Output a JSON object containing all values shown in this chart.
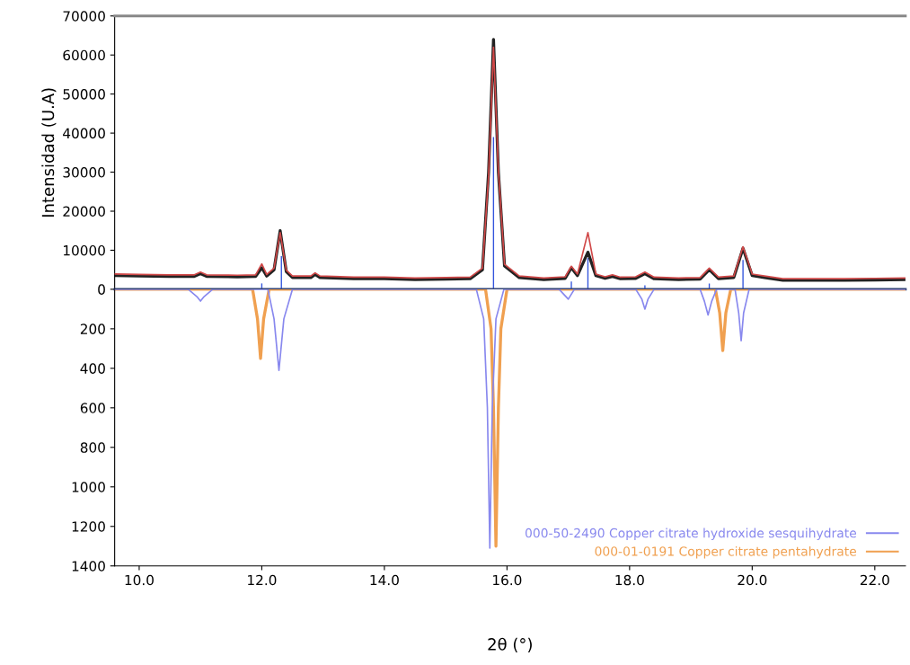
{
  "chart_data": [
    {
      "type": "line",
      "ylabel": "Intensidad (U.A)",
      "xlim": [
        9.6,
        22.5
      ],
      "ylim": [
        0,
        70000
      ],
      "yticks": [
        0,
        10000,
        20000,
        30000,
        40000,
        50000,
        60000,
        70000
      ],
      "tick_labels": "y",
      "grid": false,
      "legend": false,
      "series": [
        {
          "color": "#d04848",
          "x": [
            9.6,
            10.0,
            10.5,
            10.9,
            11.0,
            11.1,
            11.6,
            11.9,
            12.0,
            12.08,
            12.2,
            12.3,
            12.4,
            12.5,
            12.8,
            12.87,
            12.95,
            13.5,
            14.0,
            14.5,
            15.0,
            15.4,
            15.6,
            15.7,
            15.78,
            15.86,
            15.96,
            16.2,
            16.6,
            16.95,
            17.05,
            17.15,
            17.32,
            17.45,
            17.6,
            17.72,
            17.85,
            18.1,
            18.25,
            18.4,
            18.8,
            19.15,
            19.3,
            19.45,
            19.7,
            19.85,
            20.0,
            20.2,
            20.5,
            21.0,
            21.5,
            22.0,
            22.5
          ],
          "values": [
            3900,
            3800,
            3700,
            3700,
            4400,
            3700,
            3600,
            3700,
            6500,
            3800,
            5400,
            14500,
            4900,
            3400,
            3400,
            4200,
            3400,
            3100,
            3100,
            2900,
            3000,
            3100,
            5400,
            29000,
            62000,
            30400,
            6400,
            3400,
            2900,
            3200,
            5900,
            3900,
            14500,
            3900,
            3200,
            3700,
            3100,
            3200,
            4400,
            3100,
            2900,
            3000,
            5400,
            3100,
            3400,
            10900,
            3900,
            3400,
            2700,
            2700,
            2700,
            2800,
            2900
          ]
        },
        {
          "color": "#222222",
          "x": [
            9.6,
            10.0,
            10.5,
            10.9,
            11.0,
            11.1,
            11.6,
            11.9,
            12.0,
            12.08,
            12.2,
            12.3,
            12.4,
            12.5,
            12.8,
            12.87,
            12.95,
            13.5,
            14.0,
            14.5,
            15.0,
            15.4,
            15.6,
            15.7,
            15.78,
            15.86,
            15.96,
            16.2,
            16.6,
            16.95,
            17.05,
            17.15,
            17.32,
            17.45,
            17.6,
            17.72,
            17.85,
            18.1,
            18.25,
            18.4,
            18.8,
            19.15,
            19.3,
            19.45,
            19.7,
            19.85,
            20.0,
            20.2,
            20.5,
            21.0,
            21.5,
            22.0,
            22.5
          ],
          "values": [
            3500,
            3400,
            3300,
            3300,
            4000,
            3300,
            3200,
            3300,
            5500,
            3400,
            5000,
            15000,
            4500,
            3000,
            3000,
            3800,
            3000,
            2700,
            2700,
            2500,
            2600,
            2700,
            5000,
            30000,
            64000,
            30000,
            6000,
            3000,
            2500,
            2800,
            5500,
            3500,
            9500,
            3500,
            2800,
            3300,
            2700,
            2800,
            4000,
            2700,
            2500,
            2600,
            5000,
            2700,
            3000,
            10500,
            3500,
            3000,
            2300,
            2300,
            2300,
            2400,
            2500
          ]
        },
        {
          "type": "bar",
          "color": "#3355dd",
          "x": [
            12.0,
            12.32,
            15.78,
            17.05,
            17.32,
            18.25,
            19.3,
            19.85
          ],
          "values": [
            1500,
            8500,
            39000,
            2000,
            8000,
            1000,
            1500,
            7500
          ]
        }
      ]
    },
    {
      "type": "line",
      "xlabel": "2θ (°)",
      "xlim": [
        9.6,
        22.5
      ],
      "ylim": [
        1400,
        0
      ],
      "xticks": [
        {
          "value": 10,
          "label": "10.0"
        },
        {
          "value": 12,
          "label": "12.0"
        },
        {
          "value": 14,
          "label": "14.0"
        },
        {
          "value": 16,
          "label": "16.0"
        },
        {
          "value": 18,
          "label": "18.0"
        },
        {
          "value": 20,
          "label": "20.0"
        },
        {
          "value": 22,
          "label": "22.0"
        }
      ],
      "yticks": [
        200,
        400,
        600,
        800,
        1000,
        1200,
        1400
      ],
      "grid": false,
      "legend": "bottom right",
      "series": [
        {
          "name": "000-50-2490 Copper citrate hydroxide sesquihydrate",
          "color": "#8888ee",
          "x": [
            9.6,
            10.8,
            10.95,
            11.0,
            11.05,
            11.2,
            12.1,
            12.2,
            12.28,
            12.36,
            12.5,
            15.5,
            15.62,
            15.68,
            15.72,
            15.76,
            15.82,
            15.95,
            16.85,
            17.0,
            17.1,
            18.1,
            18.2,
            18.25,
            18.3,
            18.4,
            19.15,
            19.22,
            19.28,
            19.34,
            19.42,
            19.72,
            19.78,
            19.82,
            19.86,
            19.95,
            22.5
          ],
          "values": [
            0,
            0,
            40,
            60,
            40,
            0,
            0,
            150,
            410,
            150,
            0,
            0,
            150,
            600,
            1310,
            600,
            150,
            0,
            0,
            50,
            0,
            0,
            50,
            100,
            50,
            0,
            0,
            60,
            130,
            60,
            0,
            0,
            120,
            260,
            120,
            0,
            0
          ]
        },
        {
          "name": "000-01-0191 Copper citrate pentahydrate",
          "color": "#f0a050",
          "x": [
            9.6,
            11.85,
            11.93,
            11.98,
            12.03,
            12.12,
            15.65,
            15.74,
            15.78,
            15.82,
            15.86,
            15.9,
            16.0,
            19.4,
            19.47,
            19.52,
            19.57,
            19.65,
            22.5
          ],
          "values": [
            0,
            0,
            150,
            350,
            150,
            0,
            0,
            200,
            600,
            1300,
            600,
            200,
            0,
            0,
            120,
            310,
            120,
            0,
            0
          ]
        }
      ]
    }
  ]
}
